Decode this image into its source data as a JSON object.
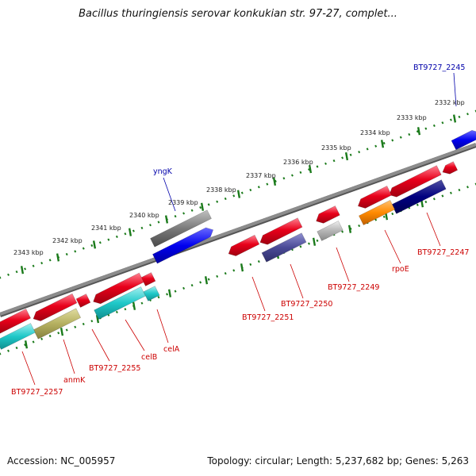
{
  "title": "Bacillus thuringiensis serovar konkukian str. 97-27, complet...",
  "footer": {
    "accession": "Accession: NC_005957",
    "summary": "Topology: circular; Length: 5,237,682 bp; Genes: 5,263"
  },
  "scale_labels": [
    "2332 kbp",
    "2333 kbp",
    "2334 kbp",
    "2335 kbp",
    "2336 kbp",
    "2337 kbp",
    "2338 kbp",
    "2339 kbp",
    "2340 kbp",
    "2341 kbp",
    "2342 kbp",
    "2343 kbp"
  ],
  "gene_labels": [
    "BT9727_2245",
    "yngK",
    "BT9727_2247",
    "rpoE",
    "BT9727_2249",
    "BT9727_2250",
    "BT9727_2251",
    "celA",
    "celB",
    "BT9727_2255",
    "anmK",
    "BT9727_2257"
  ],
  "colors": {
    "tick": "#1a7a1a",
    "backbone": "#8c8c8c",
    "gene_red": "#e8001a",
    "blue": "#0000ee",
    "navy": "#000080",
    "cyan": "#1fc8c8",
    "olive": "#b5b060",
    "orange": "#ff8a00",
    "slate": "#4a4a96",
    "grey": "#7a7a7a",
    "light_grey": "#b5b5b5",
    "label_red": "#cc0000",
    "label_blue": "#0000aa"
  }
}
